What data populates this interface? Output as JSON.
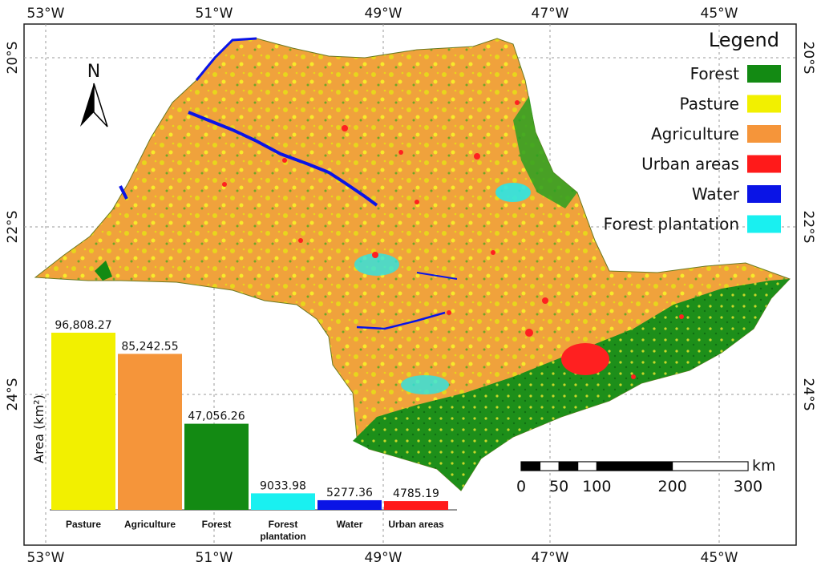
{
  "map": {
    "longitude_ticks": [
      "53°W",
      "51°W",
      "49°W",
      "47°W",
      "45°W"
    ],
    "latitude_ticks": [
      "20°S",
      "22°S",
      "24°S"
    ],
    "north_label": "N"
  },
  "legend": {
    "title": "Legend",
    "items": [
      {
        "label": "Forest",
        "color": "#138a13"
      },
      {
        "label": "Pasture",
        "color": "#f2f000"
      },
      {
        "label": "Agriculture",
        "color": "#f5953a"
      },
      {
        "label": "Urban areas",
        "color": "#ff1a1a"
      },
      {
        "label": "Water",
        "color": "#0a14e6"
      },
      {
        "label": "Forest plantation",
        "color": "#19f0f0"
      }
    ]
  },
  "scale_bar": {
    "unit": "km",
    "labels": [
      "0",
      "50",
      "100",
      "200",
      "300"
    ]
  },
  "chart_data": {
    "type": "bar",
    "ylabel": "Area (km²)",
    "categories": [
      "Pasture",
      "Agriculture",
      "Forest",
      "Forest\nplantation",
      "Water",
      "Urban areas"
    ],
    "values": [
      96808.27,
      85242.55,
      47056.26,
      9033.98,
      5277.36,
      4785.19
    ],
    "value_labels": [
      "96,808.27",
      "85,242.55",
      "47,056.26",
      "9033.98",
      "5277.36",
      "4785.19"
    ],
    "colors": [
      "#f2f000",
      "#f5953a",
      "#138a13",
      "#19f0f0",
      "#0a14e6",
      "#ff1a1a"
    ],
    "ylim": [
      0,
      100000
    ]
  }
}
